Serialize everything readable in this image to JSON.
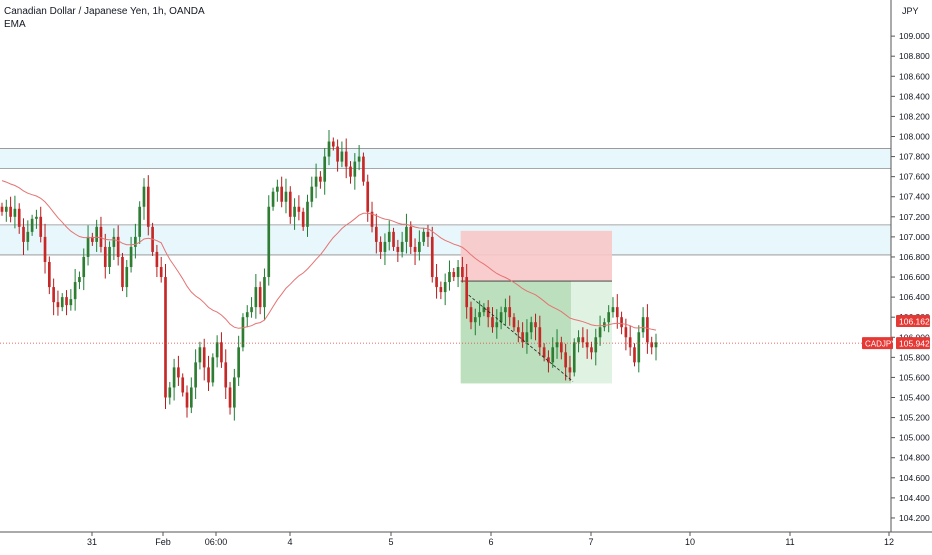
{
  "header": {
    "symbol_title": "Canadian Dollar / Japanese Yen, 1h, OANDA",
    "indicator": "EMA"
  },
  "colors": {
    "up": "#26a69a",
    "up_dark": "#1e7e34",
    "down": "#c2185b",
    "down_dark": "#b71c1c",
    "ema": "#e57373",
    "zone_fill": "#e8f7fb",
    "zone_line": "#8d8d8d",
    "stop_fill": "#f8c6c8",
    "target_fill": "#a5d6a7",
    "target_light": "#d8efd9",
    "price_label": "#e53935",
    "axis_text": "#131722"
  },
  "chart_data": {
    "type": "candlestick",
    "title": "Canadian Dollar / Japanese Yen, 1h, OANDA",
    "y_axis": {
      "unit": "JPY",
      "min": 104.1,
      "max": 109.3,
      "ticks": [
        "104.200",
        "104.400",
        "104.600",
        "104.800",
        "105.000",
        "105.200",
        "105.400",
        "105.600",
        "105.800",
        "106.000",
        "106.200",
        "106.400",
        "106.600",
        "106.800",
        "107.000",
        "107.200",
        "107.400",
        "107.600",
        "107.800",
        "108.000",
        "108.200",
        "108.400",
        "108.600",
        "108.800",
        "109.000"
      ]
    },
    "x_axis": {
      "ticks": [
        "31",
        "Feb",
        "06:00",
        "4",
        "5",
        "6",
        "7",
        "10",
        "11",
        "12"
      ]
    },
    "series_closes": [
      107.25,
      107.3,
      107.2,
      107.28,
      107.1,
      106.95,
      107.05,
      107.18,
      107.2,
      107.0,
      106.75,
      106.5,
      106.35,
      106.3,
      106.4,
      106.32,
      106.38,
      106.55,
      106.6,
      106.8,
      107.0,
      106.95,
      107.1,
      106.9,
      106.7,
      106.9,
      107.0,
      106.8,
      106.5,
      106.7,
      106.9,
      107.0,
      107.3,
      107.5,
      107.1,
      106.85,
      106.7,
      106.6,
      105.4,
      105.5,
      105.7,
      105.6,
      105.45,
      105.3,
      105.5,
      105.75,
      105.9,
      105.7,
      105.55,
      105.8,
      105.95,
      105.75,
      105.5,
      105.3,
      105.6,
      105.9,
      106.2,
      106.25,
      106.3,
      106.5,
      106.3,
      106.6,
      107.3,
      107.45,
      107.5,
      107.35,
      107.45,
      107.2,
      107.3,
      107.25,
      107.1,
      107.35,
      107.5,
      107.6,
      107.55,
      107.8,
      107.95,
      107.9,
      107.75,
      107.85,
      107.7,
      107.6,
      107.75,
      107.8,
      107.55,
      107.25,
      107.1,
      106.95,
      106.85,
      106.95,
      107.05,
      106.9,
      106.85,
      106.95,
      107.1,
      106.9,
      106.85,
      106.95,
      107.05,
      107.0,
      106.6,
      106.5,
      106.45,
      106.55,
      106.65,
      106.6,
      106.7,
      106.6,
      106.3,
      106.15,
      106.2,
      106.25,
      106.3,
      106.2,
      106.1,
      106.15,
      106.25,
      106.3,
      106.2,
      106.1,
      106.05,
      105.95,
      106.05,
      106.15,
      106.1,
      105.9,
      105.8,
      105.75,
      105.9,
      105.95,
      105.85,
      105.7,
      105.65,
      105.95,
      106.0,
      105.95,
      105.9,
      105.85,
      106.0,
      106.1,
      106.15,
      106.25,
      106.3,
      106.2,
      106.1,
      106.0,
      105.9,
      105.75,
      106.05,
      106.2,
      105.95,
      105.9,
      105.95
    ],
    "ema_start": 107.58,
    "support_resistance_zones": [
      [
        107.68,
        107.88
      ],
      [
        106.82,
        107.12
      ]
    ],
    "position": {
      "type": "short",
      "entry": 106.56,
      "stop": 107.06,
      "target": 105.54
    },
    "last_price": {
      "symbol": "CADJPY",
      "value": "105.942"
    },
    "ema_value": "106.162"
  }
}
